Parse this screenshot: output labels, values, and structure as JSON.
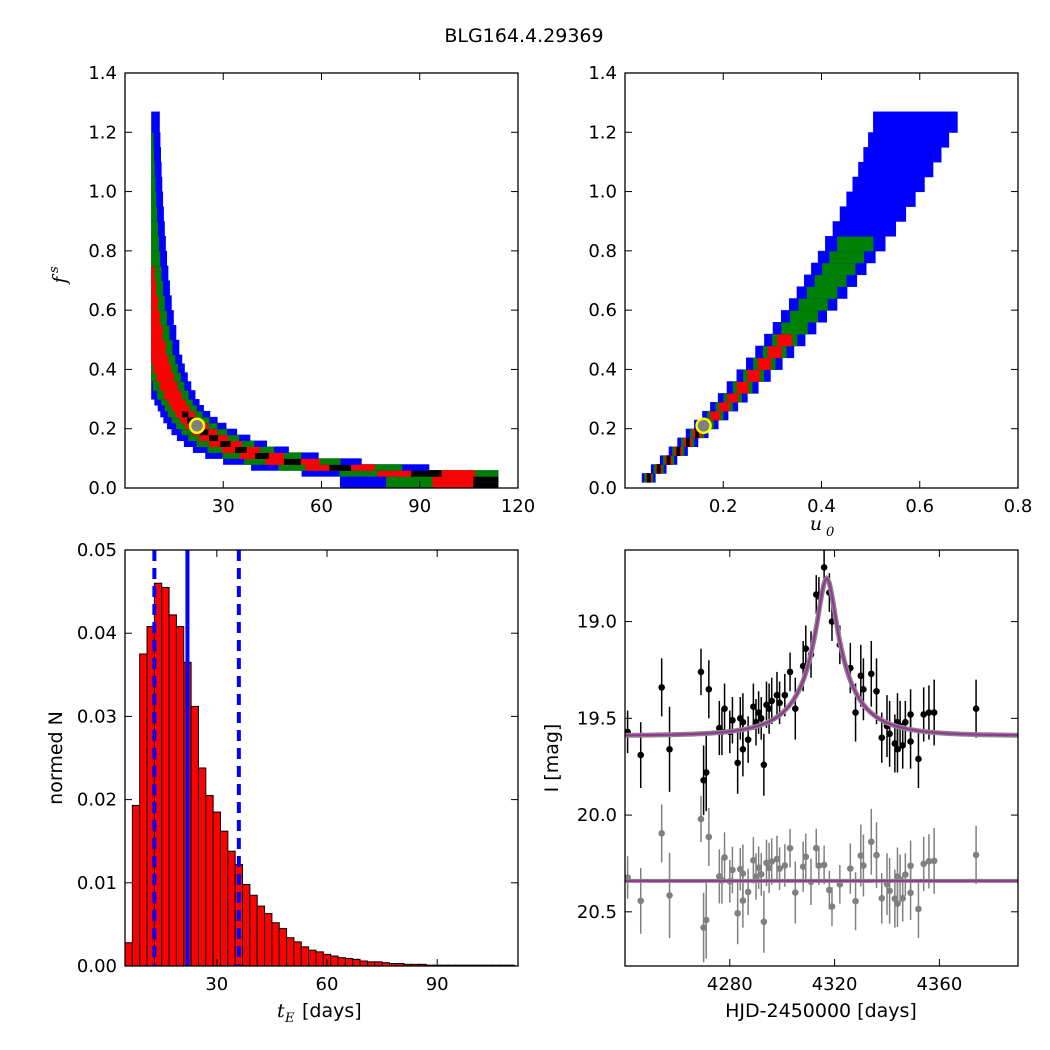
{
  "figure": {
    "title": "BLG164.4.29369"
  },
  "colors": {
    "blue": "#0000ff",
    "green": "#008000",
    "red": "#ff0000",
    "black": "#000000",
    "marker_fill": "#808080",
    "marker_edge": "#ffff00",
    "model_line": "#993399",
    "residual_points": "#808080"
  },
  "chart_data": [
    {
      "id": "fs-vs-tE",
      "type": "heatmap",
      "xlabel": "",
      "ylabel": "f_s",
      "xlim": [
        0,
        120
      ],
      "ylim": [
        0,
        1.4
      ],
      "xticks": [
        30,
        60,
        90,
        120
      ],
      "xtick_labels": [
        "30",
        "60",
        "90",
        "120"
      ],
      "yticks": [
        0.0,
        0.2,
        0.4,
        0.6,
        0.8,
        1.0,
        1.2,
        1.4
      ],
      "ytick_labels": [
        "0.0",
        "0.2",
        "0.4",
        "0.6",
        "0.8",
        "1.0",
        "1.2",
        "1.4"
      ],
      "levels": [
        "blue",
        "green",
        "red",
        "black"
      ],
      "best_fit": {
        "x": 22,
        "y": 0.21
      },
      "description_curve": "posterior band following f_s ~ 4.6 / t_E"
    },
    {
      "id": "fs-vs-u0",
      "type": "heatmap",
      "xlabel": "u_0",
      "ylabel": "",
      "xlim": [
        0,
        0.8
      ],
      "ylim": [
        0,
        1.4
      ],
      "xticks": [
        0.2,
        0.4,
        0.6,
        0.8
      ],
      "xtick_labels": [
        "0.2",
        "0.4",
        "0.6",
        "0.8"
      ],
      "yticks": [
        0.0,
        0.2,
        0.4,
        0.6,
        0.8,
        1.0,
        1.2,
        1.4
      ],
      "ytick_labels": [
        "0.0",
        "0.2",
        "0.4",
        "0.6",
        "0.8",
        "1.0",
        "1.2",
        "1.4"
      ],
      "levels": [
        "blue",
        "green",
        "red",
        "black"
      ],
      "best_fit": {
        "x": 0.16,
        "y": 0.21
      }
    },
    {
      "id": "tE-histogram",
      "type": "bar",
      "xlabel_math": "t",
      "xlabel_sub": "E",
      "xlabel_text": "[days]",
      "ylabel": "normed N",
      "xlim": [
        5,
        112
      ],
      "ylim": [
        0,
        0.05
      ],
      "xticks": [
        30,
        60,
        90
      ],
      "xtick_labels": [
        "30",
        "60",
        "90"
      ],
      "yticks": [
        0.0,
        0.01,
        0.02,
        0.03,
        0.04,
        0.05
      ],
      "ytick_labels": [
        "0.00",
        "0.01",
        "0.02",
        "0.03",
        "0.04",
        "0.05"
      ],
      "bin_start": 5,
      "bin_width": 2,
      "values": [
        0.0028,
        0.0193,
        0.0375,
        0.0408,
        0.046,
        0.0455,
        0.0422,
        0.0408,
        0.0365,
        0.0312,
        0.0238,
        0.0205,
        0.0185,
        0.0162,
        0.0138,
        0.0122,
        0.0098,
        0.0085,
        0.0072,
        0.0063,
        0.0052,
        0.0045,
        0.0034,
        0.0029,
        0.0023,
        0.0019,
        0.0017,
        0.0014,
        0.0012,
        0.001,
        0.0009,
        0.0008,
        0.0006,
        0.0005,
        0.0005,
        0.0004,
        0.0003,
        0.0003,
        0.0002,
        0.0002,
        0.0002,
        0.0001,
        0.0001,
        0.0001,
        0.0001,
        0.0001,
        0.0001,
        0.0001,
        0.0001,
        0.0001,
        0.0001,
        0.0001,
        0.0001
      ],
      "median_line": 22,
      "interval_lines": [
        13,
        36
      ]
    },
    {
      "id": "lightcurve",
      "type": "scatter",
      "xlabel": "HJD-2450000 [days]",
      "ylabel": "I [mag]",
      "xlim": [
        4240,
        4390
      ],
      "ylim": [
        20.78,
        18.63
      ],
      "xticks": [
        4280,
        4320,
        4360
      ],
      "xtick_labels": [
        "4280",
        "4320",
        "4360"
      ],
      "yticks": [
        19.0,
        19.5,
        20.0,
        20.5
      ],
      "ytick_labels": [
        "19.0",
        "19.5",
        "20.0",
        "20.5"
      ],
      "model": {
        "t0": 4317,
        "tE": 22,
        "u0": 0.16,
        "fs": 0.21,
        "baseline": 19.59
      },
      "residual_offset": 20.34,
      "points": [
        [
          4241,
          19.57,
          0.11
        ],
        [
          4246,
          19.69,
          0.17
        ],
        [
          4254,
          19.34,
          0.15
        ],
        [
          4257,
          19.66,
          0.22
        ],
        [
          4269,
          19.26,
          0.12
        ],
        [
          4270,
          19.82,
          0.18
        ],
        [
          4271,
          19.78,
          0.2
        ],
        [
          4272,
          19.35,
          0.15
        ],
        [
          4276,
          19.55,
          0.14
        ],
        [
          4277,
          19.57,
          0.12
        ],
        [
          4278,
          19.45,
          0.13
        ],
        [
          4280,
          19.57,
          0.11
        ],
        [
          4281,
          19.51,
          0.12
        ],
        [
          4283,
          19.73,
          0.16
        ],
        [
          4284,
          19.5,
          0.11
        ],
        [
          4285,
          19.66,
          0.14
        ],
        [
          4285,
          19.52,
          0.15
        ],
        [
          4287,
          19.61,
          0.12
        ],
        [
          4289,
          19.44,
          0.12
        ],
        [
          4290,
          19.52,
          0.12
        ],
        [
          4291,
          19.47,
          0.11
        ],
        [
          4292,
          19.5,
          0.11
        ],
        [
          4293,
          19.74,
          0.16
        ],
        [
          4294,
          19.43,
          0.12
        ],
        [
          4295,
          19.45,
          0.13
        ],
        [
          4296,
          19.41,
          0.12
        ],
        [
          4298,
          19.38,
          0.12
        ],
        [
          4299,
          19.42,
          0.11
        ],
        [
          4301,
          19.38,
          0.11
        ],
        [
          4303,
          19.26,
          0.1
        ],
        [
          4305,
          19.45,
          0.16
        ],
        [
          4308,
          19.23,
          0.13
        ],
        [
          4309,
          19.14,
          0.12
        ],
        [
          4311,
          19.17,
          0.12
        ],
        [
          4313,
          18.86,
          0.1
        ],
        [
          4314,
          18.87,
          0.1
        ],
        [
          4316,
          18.72,
          0.1
        ],
        [
          4318,
          18.85,
          0.1
        ],
        [
          4319,
          19.0,
          0.1
        ],
        [
          4322,
          19.12,
          0.1
        ],
        [
          4326,
          19.24,
          0.13
        ],
        [
          4328,
          19.47,
          0.15
        ],
        [
          4330,
          19.28,
          0.16
        ],
        [
          4331,
          19.35,
          0.16
        ],
        [
          4334,
          19.27,
          0.17
        ],
        [
          4336,
          19.36,
          0.17
        ],
        [
          4338,
          19.6,
          0.13
        ],
        [
          4340,
          19.54,
          0.16
        ],
        [
          4341,
          19.58,
          0.17
        ],
        [
          4343,
          19.63,
          0.15
        ],
        [
          4344,
          19.52,
          0.15
        ],
        [
          4344,
          19.66,
          0.12
        ],
        [
          4345,
          19.54,
          0.13
        ],
        [
          4346,
          19.64,
          0.12
        ],
        [
          4347,
          19.52,
          0.11
        ],
        [
          4349,
          19.48,
          0.13
        ],
        [
          4349,
          19.62,
          0.14
        ],
        [
          4352,
          19.71,
          0.15
        ],
        [
          4354,
          19.48,
          0.14
        ],
        [
          4356,
          19.47,
          0.14
        ],
        [
          4358,
          19.47,
          0.17
        ],
        [
          4374,
          19.45,
          0.15
        ]
      ]
    }
  ]
}
